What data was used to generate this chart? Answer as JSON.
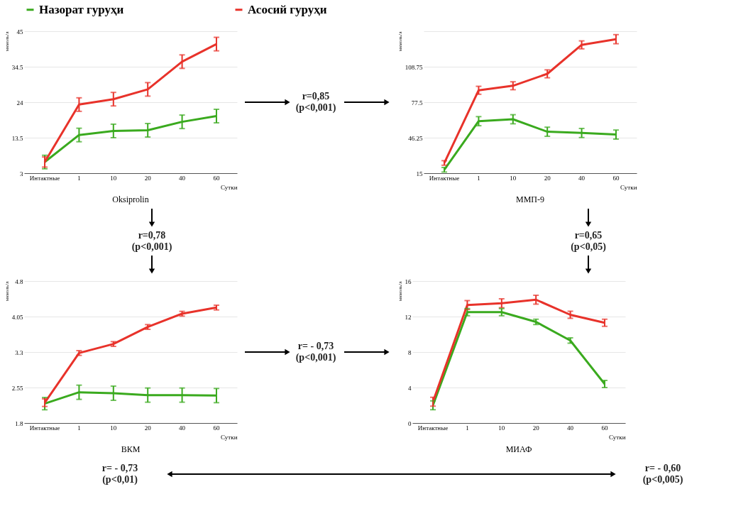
{
  "chart_data": [
    {
      "type": "line",
      "title": "Oksiprolin",
      "xlabel": "Сутки",
      "ylabel": "мкмоль/л",
      "categories": [
        "Интактные",
        "1",
        "10",
        "20",
        "40",
        "60"
      ],
      "ylim": [
        3,
        45
      ],
      "yticks": [
        3,
        13.5,
        24,
        34.5,
        45
      ],
      "grid": "y",
      "legend": "top",
      "marker": "none",
      "line_style": "solid",
      "series": [
        {
          "name": "Назорат гуруҳи",
          "color": "#3aaa1e",
          "values": [
            6.3,
            14.3,
            15.5,
            15.7,
            18.2,
            19.9
          ],
          "errors": [
            2,
            2,
            2,
            2,
            2,
            2
          ]
        },
        {
          "name": "Асосий гуруҳи",
          "color": "#e8322a",
          "values": [
            6.3,
            23.3,
            24.9,
            27.8,
            36,
            41.2
          ],
          "errors": [
            1.5,
            2,
            2,
            2,
            2,
            2
          ]
        }
      ],
      "annotations": [
        "r=0,85",
        "(p<0,001)",
        "r=0,78",
        "(p<0,001)"
      ]
    },
    {
      "type": "line",
      "title": "ММП-9",
      "xlabel": "Сутки",
      "ylabel": "мкмоль/л",
      "categories": [
        "Интактные",
        "1",
        "10",
        "20",
        "40",
        "60"
      ],
      "ylim": [
        15,
        140
      ],
      "yticks": [
        15,
        46.25,
        77.5,
        108.75,
        {
          "value": 140,
          "label": null
        }
      ],
      "grid": "y",
      "marker": "none",
      "line_style": "solid",
      "series": [
        {
          "name": "Назорат гуруҳи",
          "color": "#3aaa1e",
          "values": [
            18,
            60.8,
            62.5,
            51.5,
            50.4,
            49
          ],
          "errors": [
            2,
            4,
            4,
            4,
            4,
            4
          ]
        },
        {
          "name": "Асосий гуруҳи",
          "color": "#e8322a",
          "values": [
            24,
            88,
            92,
            102.5,
            128,
            133
          ],
          "errors": [
            2,
            3.5,
            3.5,
            3.5,
            3.5,
            4
          ]
        }
      ],
      "annotations": [
        "r=0,65",
        "(p<0,05)"
      ]
    },
    {
      "type": "line",
      "title": "ВКМ",
      "xlabel": "Сутки",
      "ylabel": "мкмоль/л",
      "categories": [
        "Интактные",
        "1",
        "10",
        "20",
        "40",
        "60"
      ],
      "ylim": [
        1.8,
        4.8
      ],
      "yticks": [
        1.8,
        2.55,
        3.3,
        4.05,
        4.8
      ],
      "grid": "y",
      "marker": "none",
      "line_style": "solid",
      "series": [
        {
          "name": "Назорат гуруҳи",
          "color": "#3aaa1e",
          "values": [
            2.21,
            2.45,
            2.43,
            2.39,
            2.39,
            2.38
          ],
          "errors": [
            0.13,
            0.15,
            0.15,
            0.15,
            0.15,
            0.15
          ]
        },
        {
          "name": "Асосий гуруҳи",
          "color": "#e8322a",
          "values": [
            2.23,
            3.28,
            3.47,
            3.83,
            4.11,
            4.24
          ],
          "errors": [
            0.08,
            0.05,
            0.05,
            0.05,
            0.05,
            0.05
          ]
        }
      ],
      "annotations": [
        "r= - 0,73",
        "(p<0,001)",
        "r= - 0,73",
        "(p<0,01)"
      ]
    },
    {
      "type": "line",
      "title": "МИАФ",
      "xlabel": "Сутки",
      "ylabel": "мкмоль/л",
      "categories": [
        "Интактные",
        "1",
        "10",
        "20",
        "40",
        "60"
      ],
      "ylim": [
        0,
        16
      ],
      "yticks": [
        0,
        4,
        8,
        12,
        16
      ],
      "grid": "y",
      "marker": "none",
      "line_style": "solid",
      "series": [
        {
          "name": "Назорат гуруҳи",
          "color": "#3aaa1e",
          "values": [
            2.0,
            12.5,
            12.5,
            11.4,
            9.3,
            4.4
          ],
          "errors": [
            0.5,
            0.4,
            0.4,
            0.3,
            0.3,
            0.4
          ]
        },
        {
          "name": "Асосий гуруҳи",
          "color": "#e8322a",
          "values": [
            2.4,
            13.3,
            13.5,
            13.9,
            12.2,
            11.3
          ],
          "errors": [
            0.5,
            0.5,
            0.5,
            0.5,
            0.4,
            0.4
          ]
        }
      ],
      "annotations": [
        "r= - 0,60",
        "(p<0,005)"
      ]
    }
  ]
}
